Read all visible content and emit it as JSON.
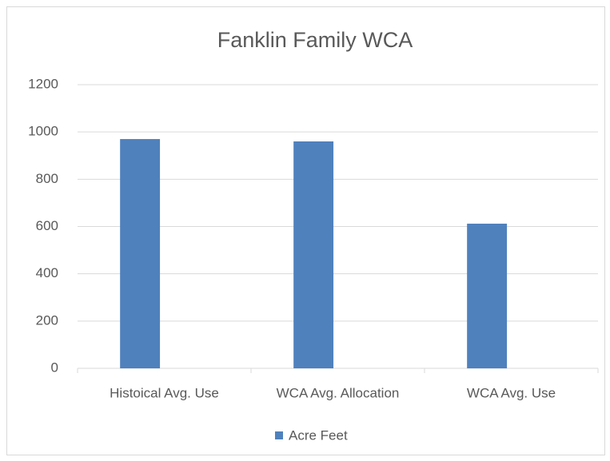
{
  "chart_data": {
    "type": "bar",
    "title": "Fanklin Family WCA",
    "categories": [
      "Histoical Avg. Use",
      "WCA Avg. Allocation",
      "WCA Avg. Use"
    ],
    "series": [
      {
        "name": "Acre Feet",
        "color": "#4f81bd",
        "values": [
          970,
          960,
          612
        ]
      }
    ],
    "ylim": [
      0,
      1200
    ],
    "yticks": [
      0,
      200,
      400,
      600,
      800,
      1000,
      1200
    ],
    "grid": true,
    "legend": "bottom"
  }
}
